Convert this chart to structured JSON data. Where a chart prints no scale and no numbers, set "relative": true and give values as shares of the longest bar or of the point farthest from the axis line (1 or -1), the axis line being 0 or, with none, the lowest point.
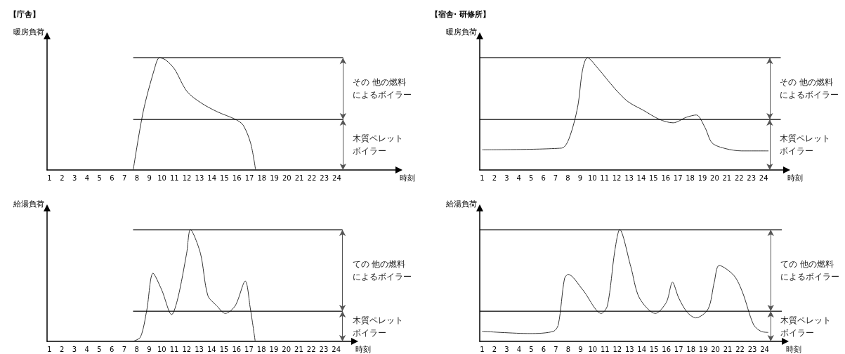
{
  "chart_data": [
    {
      "type": "line",
      "title": "【庁舎】",
      "ylabel": "暖房負荷",
      "xlabel": "時刻",
      "relative": true,
      "marker": "none",
      "line_style": "solid",
      "xlim": [
        0.8,
        28.7
      ],
      "xticks": [
        1,
        2,
        3,
        4,
        5,
        6,
        7,
        8,
        9,
        10,
        11,
        12,
        13,
        14,
        15,
        16,
        17,
        18,
        19,
        20,
        21,
        22,
        23,
        24
      ],
      "annotations": [
        "その 他の燃料",
        "によるボイラー",
        "木質ペレット",
        "ボイラー"
      ],
      "series": [
        {
          "color": "#333333",
          "x": [
            7.7,
            8.5,
            9.4,
            9.8,
            10.3,
            11,
            12,
            13.1,
            14.4,
            15.9,
            16.5,
            17.1,
            17.5
          ],
          "values": [
            0,
            0.52,
            0.9,
            1,
            0.98,
            0.9,
            0.7,
            0.6,
            0.52,
            0.45,
            0.4,
            0.24,
            0
          ]
        },
        {
          "color": "#000000",
          "x": [
            7.7,
            24.5
          ],
          "values": [
            1,
            1
          ]
        },
        {
          "color": "#000000",
          "x": [
            7.7,
            24.5
          ],
          "values": [
            0.45,
            0.45
          ]
        }
      ]
    },
    {
      "type": "line",
      "title": "【宿舎· 研修所】",
      "ylabel": "暖房負荷",
      "xlabel": "時刻",
      "relative": true,
      "marker": "none",
      "line_style": "solid",
      "xlim": [
        0.8,
        25.6
      ],
      "xticks": [
        1,
        2,
        3,
        4,
        5,
        6,
        7,
        8,
        9,
        10,
        11,
        12,
        13,
        14,
        15,
        16,
        17,
        18,
        19,
        20,
        21,
        22,
        23,
        24
      ],
      "annotations": [
        "その 他の燃料",
        "によるボイラー",
        "木質ペレット",
        "ボイラー"
      ],
      "series": [
        {
          "color": "#333333",
          "x": [
            1,
            7.5,
            8.1,
            8.8,
            9.2,
            9.6,
            10.5,
            11.8,
            12.9,
            14.2,
            15.5,
            16.6,
            17.7,
            18.5,
            19.2,
            19.8,
            20.9,
            22.2,
            24.4
          ],
          "values": [
            0.18,
            0.195,
            0.28,
            0.56,
            0.89,
            1,
            0.9,
            0.73,
            0.61,
            0.53,
            0.45,
            0.42,
            0.47,
            0.49,
            0.38,
            0.24,
            0.19,
            0.17,
            0.17
          ]
        },
        {
          "color": "#000000",
          "x": [
            0.8,
            25.4
          ],
          "values": [
            1,
            1
          ]
        },
        {
          "color": "#000000",
          "x": [
            0.8,
            25.4
          ],
          "values": [
            0.45,
            0.45
          ]
        }
      ]
    },
    {
      "type": "line",
      "ylabel": "給湯負荷",
      "xlabel": "時刻",
      "relative": true,
      "marker": "none",
      "line_style": "solid",
      "xlim": [
        0.8,
        25.2
      ],
      "xticks": [
        1,
        2,
        3,
        4,
        5,
        6,
        7,
        8,
        9,
        10,
        11,
        12,
        13,
        14,
        15,
        16,
        17,
        18,
        19,
        20,
        21,
        22,
        23,
        24
      ],
      "annotations": [
        "ての 他の燃料",
        "によるボイラー",
        "木質ペレット",
        "ボイラー"
      ],
      "series": [
        {
          "color": "#333333",
          "x": [
            7.7,
            8.3,
            8.8,
            9.3,
            10,
            10.8,
            11.3,
            12,
            12.3,
            13.1,
            13.7,
            14.4,
            15.1,
            15.9,
            16.7,
            17.1,
            17.5
          ],
          "values": [
            0,
            0.04,
            0.28,
            0.61,
            0.46,
            0.24,
            0.39,
            0.79,
            1,
            0.79,
            0.41,
            0.32,
            0.25,
            0.32,
            0.54,
            0.3,
            0
          ]
        },
        {
          "color": "#000000",
          "x": [
            7.7,
            24.5
          ],
          "values": [
            1,
            1
          ]
        },
        {
          "color": "#000000",
          "x": [
            7.7,
            24.5
          ],
          "values": [
            0.27,
            0.27
          ]
        }
      ]
    },
    {
      "type": "line",
      "ylabel": "給湯負荷",
      "xlabel": "時刻",
      "relative": true,
      "marker": "none",
      "line_style": "solid",
      "xlim": [
        0.8,
        25.4
      ],
      "xticks": [
        1,
        2,
        3,
        4,
        5,
        6,
        7,
        8,
        9,
        10,
        11,
        12,
        13,
        14,
        15,
        16,
        17,
        18,
        19,
        20,
        21,
        22,
        23,
        24
      ],
      "annotations": [
        "ての 他の燃料",
        "によるボイラー",
        "木質ペレット",
        "ボイラー"
      ],
      "series": [
        {
          "color": "#333333",
          "x": [
            1,
            4.9,
            6.8,
            7.2,
            7.7,
            8,
            9.2,
            10.7,
            11.2,
            11.8,
            12.2,
            13.1,
            13.8,
            15.1,
            16,
            16.5,
            17,
            17.7,
            18.4,
            19.4,
            19.9,
            20.3,
            21.5,
            22.2,
            23.1,
            23.7,
            24.3
          ],
          "values": [
            0.09,
            0.07,
            0.09,
            0.15,
            0.56,
            0.6,
            0.46,
            0.25,
            0.32,
            0.81,
            1,
            0.67,
            0.39,
            0.25,
            0.35,
            0.53,
            0.39,
            0.26,
            0.21,
            0.29,
            0.53,
            0.68,
            0.59,
            0.44,
            0.15,
            0.09,
            0.08
          ]
        },
        {
          "color": "#000000",
          "x": [
            0.8,
            25.4
          ],
          "values": [
            1,
            1
          ]
        },
        {
          "color": "#000000",
          "x": [
            0.8,
            25.4
          ],
          "values": [
            0.27,
            0.27
          ]
        }
      ]
    }
  ]
}
